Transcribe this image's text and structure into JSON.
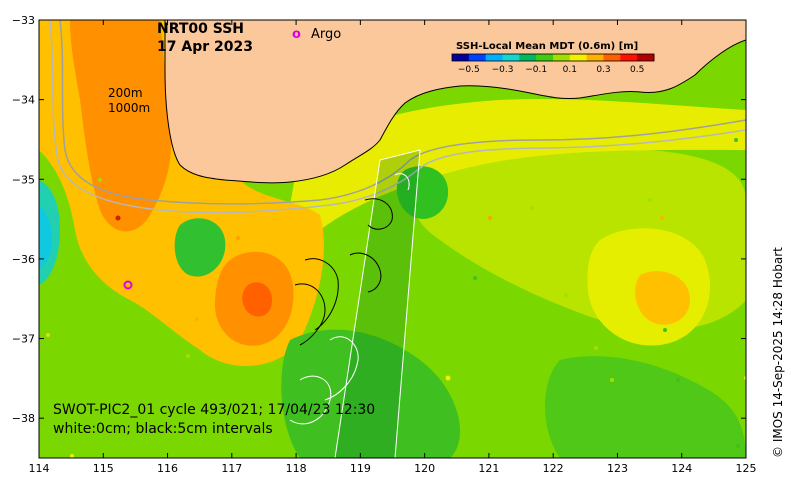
{
  "title": {
    "product": "NRT00 SSH",
    "date": "17 Apr 2023"
  },
  "legend": {
    "argo_symbol": "o",
    "argo_label": "Argo",
    "argo_color": "#e000e0"
  },
  "isobaths": {
    "label_200": "200m",
    "label_1000": "1000m"
  },
  "colorbar": {
    "title": "SSH-Local Mean MDT (0.6m) [m]",
    "ticks": [
      "−0.5",
      "−0.3",
      "−0.1",
      "0.1",
      "0.3",
      "0.5"
    ],
    "colors": [
      "#00009c",
      "#0040ff",
      "#00b0ff",
      "#10d8d0",
      "#00b860",
      "#40cc10",
      "#a0e000",
      "#f0f000",
      "#ffb000",
      "#ff6000",
      "#ff1000",
      "#b00000"
    ]
  },
  "swot": {
    "line1": "SWOT-PIC2_01 cycle 493/021; 17/04/23 12:30",
    "line2": "white:0cm; black:5cm intervals"
  },
  "credit": "© IMOS 14-Sep-2025 14:28 Hobart",
  "axes": {
    "x_ticks": [
      "114",
      "115",
      "116",
      "117",
      "118",
      "119",
      "120",
      "121",
      "122",
      "123",
      "124",
      "125"
    ],
    "y_ticks": [
      "−33",
      "−34",
      "−35",
      "−36",
      "−37",
      "−38"
    ],
    "xlim": [
      114,
      125
    ],
    "ylim": [
      -38.5,
      -33
    ]
  },
  "colors": {
    "land": "#fac89a",
    "base_field": "#7ad800"
  }
}
